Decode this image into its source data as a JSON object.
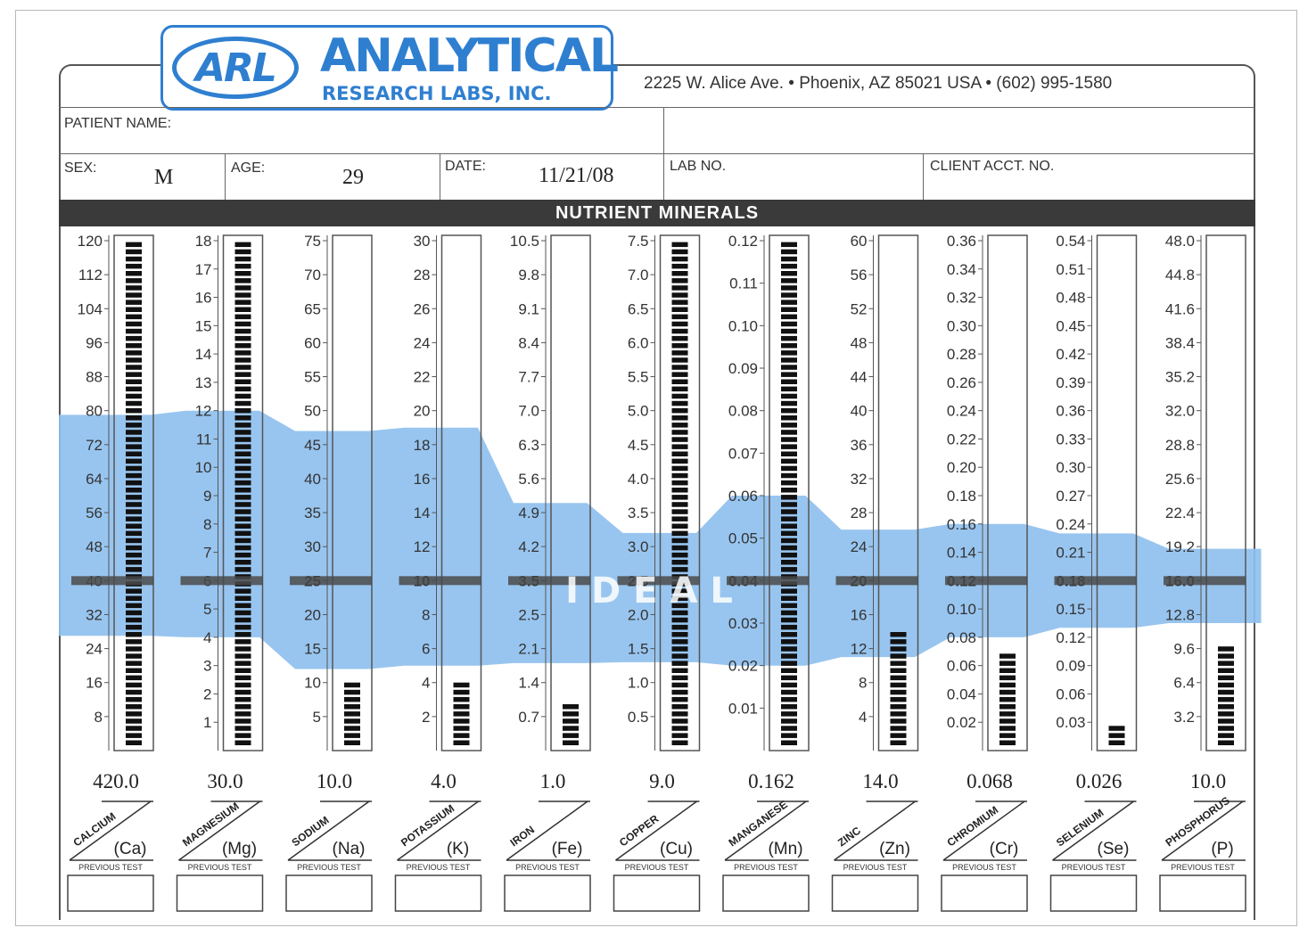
{
  "header": {
    "logo_mark": "ARL",
    "logo_name": "ANALYTICAL",
    "logo_sub": "RESEARCH LABS, INC.",
    "address": "2225 W. Alice Ave.  •  Phoenix, AZ 85021 USA  •  (602) 995-1580"
  },
  "form": {
    "patient_name_label": "PATIENT  NAME:",
    "sex_label": "SEX:",
    "sex_value": "M",
    "age_label": "AGE:",
    "age_value": "29",
    "date_label": "DATE:",
    "date_value": "11/21/08",
    "lab_no_label": "LAB NO.",
    "client_acct_label": "CLIENT  ACCT.  NO."
  },
  "section_title": "NUTRIENT MINERALS",
  "ideal_label": "IDEAL",
  "previous_test_label": "PREVIOUS  TEST",
  "colors": {
    "ideal_band": "#8fc0ee",
    "logo": "#2f7fd0",
    "bar": "#111111",
    "header_band": "#3a3a3a"
  },
  "chart_data": {
    "type": "bar",
    "title": "NUTRIENT MINERALS",
    "xlabel": "",
    "ylabel": "",
    "grid": false,
    "legend": "none",
    "minerals": [
      {
        "name": "CALCIUM",
        "symbol": "(Ca)",
        "result": 420.0,
        "result_label": "420.0",
        "scale_max": 120,
        "ideal_range": [
          27,
          79
        ],
        "ideal_mark": 40,
        "ticks": [
          "120",
          "112",
          "104",
          "96",
          "88",
          "80",
          "72",
          "64",
          "56",
          "48",
          "40",
          "32",
          "24",
          "16",
          "8"
        ],
        "bold_tick": ""
      },
      {
        "name": "MAGNESIUM",
        "symbol": "(Mg)",
        "result": 30.0,
        "result_label": "30.0",
        "scale_max": 18,
        "ideal_range": [
          4,
          12
        ],
        "ideal_mark": 6,
        "ticks": [
          "18",
          "17",
          "16",
          "15",
          "14",
          "13",
          "12",
          "11",
          "10",
          "9",
          "8",
          "7",
          "6",
          "5",
          "4",
          "3",
          "2",
          "1"
        ],
        "bold_tick": ""
      },
      {
        "name": "SODIUM",
        "symbol": "(Na)",
        "result": 10.0,
        "result_label": "10.0",
        "scale_max": 75,
        "ideal_range": [
          12,
          47
        ],
        "ideal_mark": 25,
        "ticks": [
          "75",
          "70",
          "65",
          "60",
          "55",
          "50",
          "45",
          "40",
          "35",
          "30",
          "25",
          "20",
          "15",
          "10",
          "5"
        ],
        "bold_tick": "25"
      },
      {
        "name": "POTASSIUM",
        "symbol": "(K)",
        "result": 4.0,
        "result_label": "4.0",
        "scale_max": 30,
        "ideal_range": [
          5,
          19
        ],
        "ideal_mark": 10,
        "ticks": [
          "30",
          "28",
          "26",
          "24",
          "22",
          "20",
          "18",
          "16",
          "14",
          "12",
          "10",
          "8",
          "6",
          "4",
          "2"
        ],
        "bold_tick": "10"
      },
      {
        "name": "IRON",
        "symbol": "(Fe)",
        "result": 1.0,
        "result_label": "1.0",
        "scale_max": 10.5,
        "ideal_range": [
          1.8,
          5.1
        ],
        "ideal_mark": 3.5,
        "ticks": [
          "10.5",
          "9.8",
          "9.1",
          "8.4",
          "7.7",
          "7.0",
          "6.3",
          "5.6",
          "4.9",
          "4.2",
          "3.5",
          "2.5",
          "2.1",
          "1.4",
          "0.7"
        ],
        "bold_tick": "3.5"
      },
      {
        "name": "COPPER",
        "symbol": "(Cu)",
        "result": 9.0,
        "result_label": "9.0",
        "scale_max": 7.5,
        "ideal_range": [
          1.3,
          3.2
        ],
        "ideal_mark": 2.5,
        "ticks": [
          "7.5",
          "7.0",
          "6.5",
          "6.0",
          "5.5",
          "5.0",
          "4.5",
          "4.0",
          "3.5",
          "3.0",
          "2.5",
          "2.0",
          "1.5",
          "1.0",
          "0.5"
        ],
        "bold_tick": "2.5"
      },
      {
        "name": "MANGANESE",
        "symbol": "(Mn)",
        "result": 0.162,
        "result_label": "0.162",
        "scale_max": 0.12,
        "ideal_range": [
          0.02,
          0.06
        ],
        "ideal_mark": 0.04,
        "ticks": [
          "0.12",
          "0.11",
          "0.10",
          "0.09",
          "0.08",
          "0.07",
          "0.06",
          "0.05",
          "0.04",
          "0.03",
          "0.02",
          "0.01"
        ],
        "bold_tick": "0.04"
      },
      {
        "name": "ZINC",
        "symbol": "(Zn)",
        "result": 14.0,
        "result_label": "14.0",
        "scale_max": 60,
        "ideal_range": [
          11,
          26
        ],
        "ideal_mark": 20,
        "ticks": [
          "60",
          "56",
          "52",
          "48",
          "44",
          "40",
          "36",
          "32",
          "28",
          "24",
          "20",
          "16",
          "12",
          "8",
          "4"
        ],
        "bold_tick": "20"
      },
      {
        "name": "CHROMIUM",
        "symbol": "(Cr)",
        "result": 0.068,
        "result_label": "0.068",
        "scale_max": 0.36,
        "ideal_range": [
          0.08,
          0.16
        ],
        "ideal_mark": 0.12,
        "ticks": [
          "0.36",
          "0.34",
          "0.32",
          "0.30",
          "0.28",
          "0.26",
          "0.24",
          "0.22",
          "0.20",
          "0.18",
          "0.16",
          "0.14",
          "0.12",
          "0.10",
          "0.08",
          "0.06",
          "0.04",
          "0.02"
        ],
        "bold_tick": "0.12"
      },
      {
        "name": "SELENIUM",
        "symbol": "(Se)",
        "result": 0.026,
        "result_label": "0.026",
        "scale_max": 0.54,
        "ideal_range": [
          0.13,
          0.23
        ],
        "ideal_mark": 0.18,
        "ticks": [
          "0.54",
          "0.51",
          "0.48",
          "0.45",
          "0.42",
          "0.39",
          "0.36",
          "0.33",
          "0.30",
          "0.27",
          "0.24",
          "0.21",
          "0.18",
          "0.15",
          "0.12",
          "0.09",
          "0.06",
          "0.03"
        ],
        "bold_tick": "0.18"
      },
      {
        "name": "PHOSPHORUS",
        "symbol": "(P)",
        "result": 10.0,
        "result_label": "10.0",
        "scale_max": 48,
        "ideal_range": [
          12,
          19
        ],
        "ideal_mark": 16,
        "ticks": [
          "48.0",
          "44.8",
          "41.6",
          "38.4",
          "35.2",
          "32.0",
          "28.8",
          "25.6",
          "22.4",
          "19.2",
          "16.0",
          "12.8",
          "9.6",
          "6.4",
          "3.2"
        ],
        "bold_tick": "16.0"
      }
    ]
  }
}
